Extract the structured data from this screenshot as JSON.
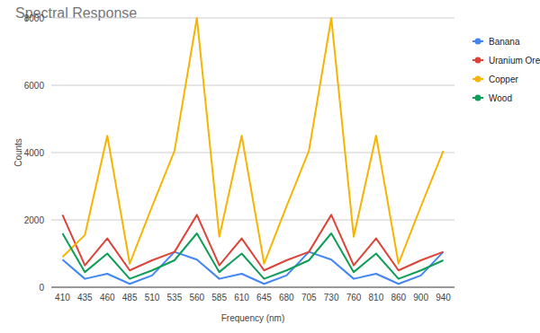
{
  "chart_data": {
    "type": "line",
    "title": "Spectral Response",
    "x_label": "Frequency (nm)",
    "y_label": "Counts",
    "categories": [
      "410",
      "435",
      "460",
      "485",
      "510",
      "535",
      "560",
      "585",
      "610",
      "645",
      "680",
      "705",
      "730",
      "760",
      "810",
      "860",
      "900",
      "940"
    ],
    "series": [
      {
        "name": "Banana",
        "color": "#4285f4",
        "values": [
          820,
          250,
          400,
          100,
          350,
          1050,
          820,
          250,
          400,
          100,
          350,
          1050,
          820,
          250,
          400,
          100,
          350,
          1050
        ]
      },
      {
        "name": "Uranium Ore",
        "color": "#db4437",
        "values": [
          2150,
          650,
          1450,
          500,
          800,
          1050,
          2150,
          650,
          1450,
          500,
          800,
          1050,
          2150,
          650,
          1450,
          500,
          800,
          1050
        ]
      },
      {
        "name": "Copper",
        "color": "#f4b400",
        "values": [
          900,
          1550,
          4500,
          700,
          2400,
          4050,
          8000,
          1500,
          4500,
          700,
          2400,
          4050,
          8000,
          1500,
          4500,
          700,
          2400,
          4050
        ]
      },
      {
        "name": "Wood",
        "color": "#0f9d58",
        "values": [
          1600,
          450,
          1000,
          250,
          500,
          800,
          1600,
          450,
          1000,
          250,
          500,
          800,
          1600,
          450,
          1000,
          250,
          500,
          800
        ]
      }
    ],
    "ylim": [
      0,
      8000
    ],
    "yticks": [
      0,
      2000,
      4000,
      6000,
      8000
    ],
    "grid": true,
    "legend": "right"
  }
}
